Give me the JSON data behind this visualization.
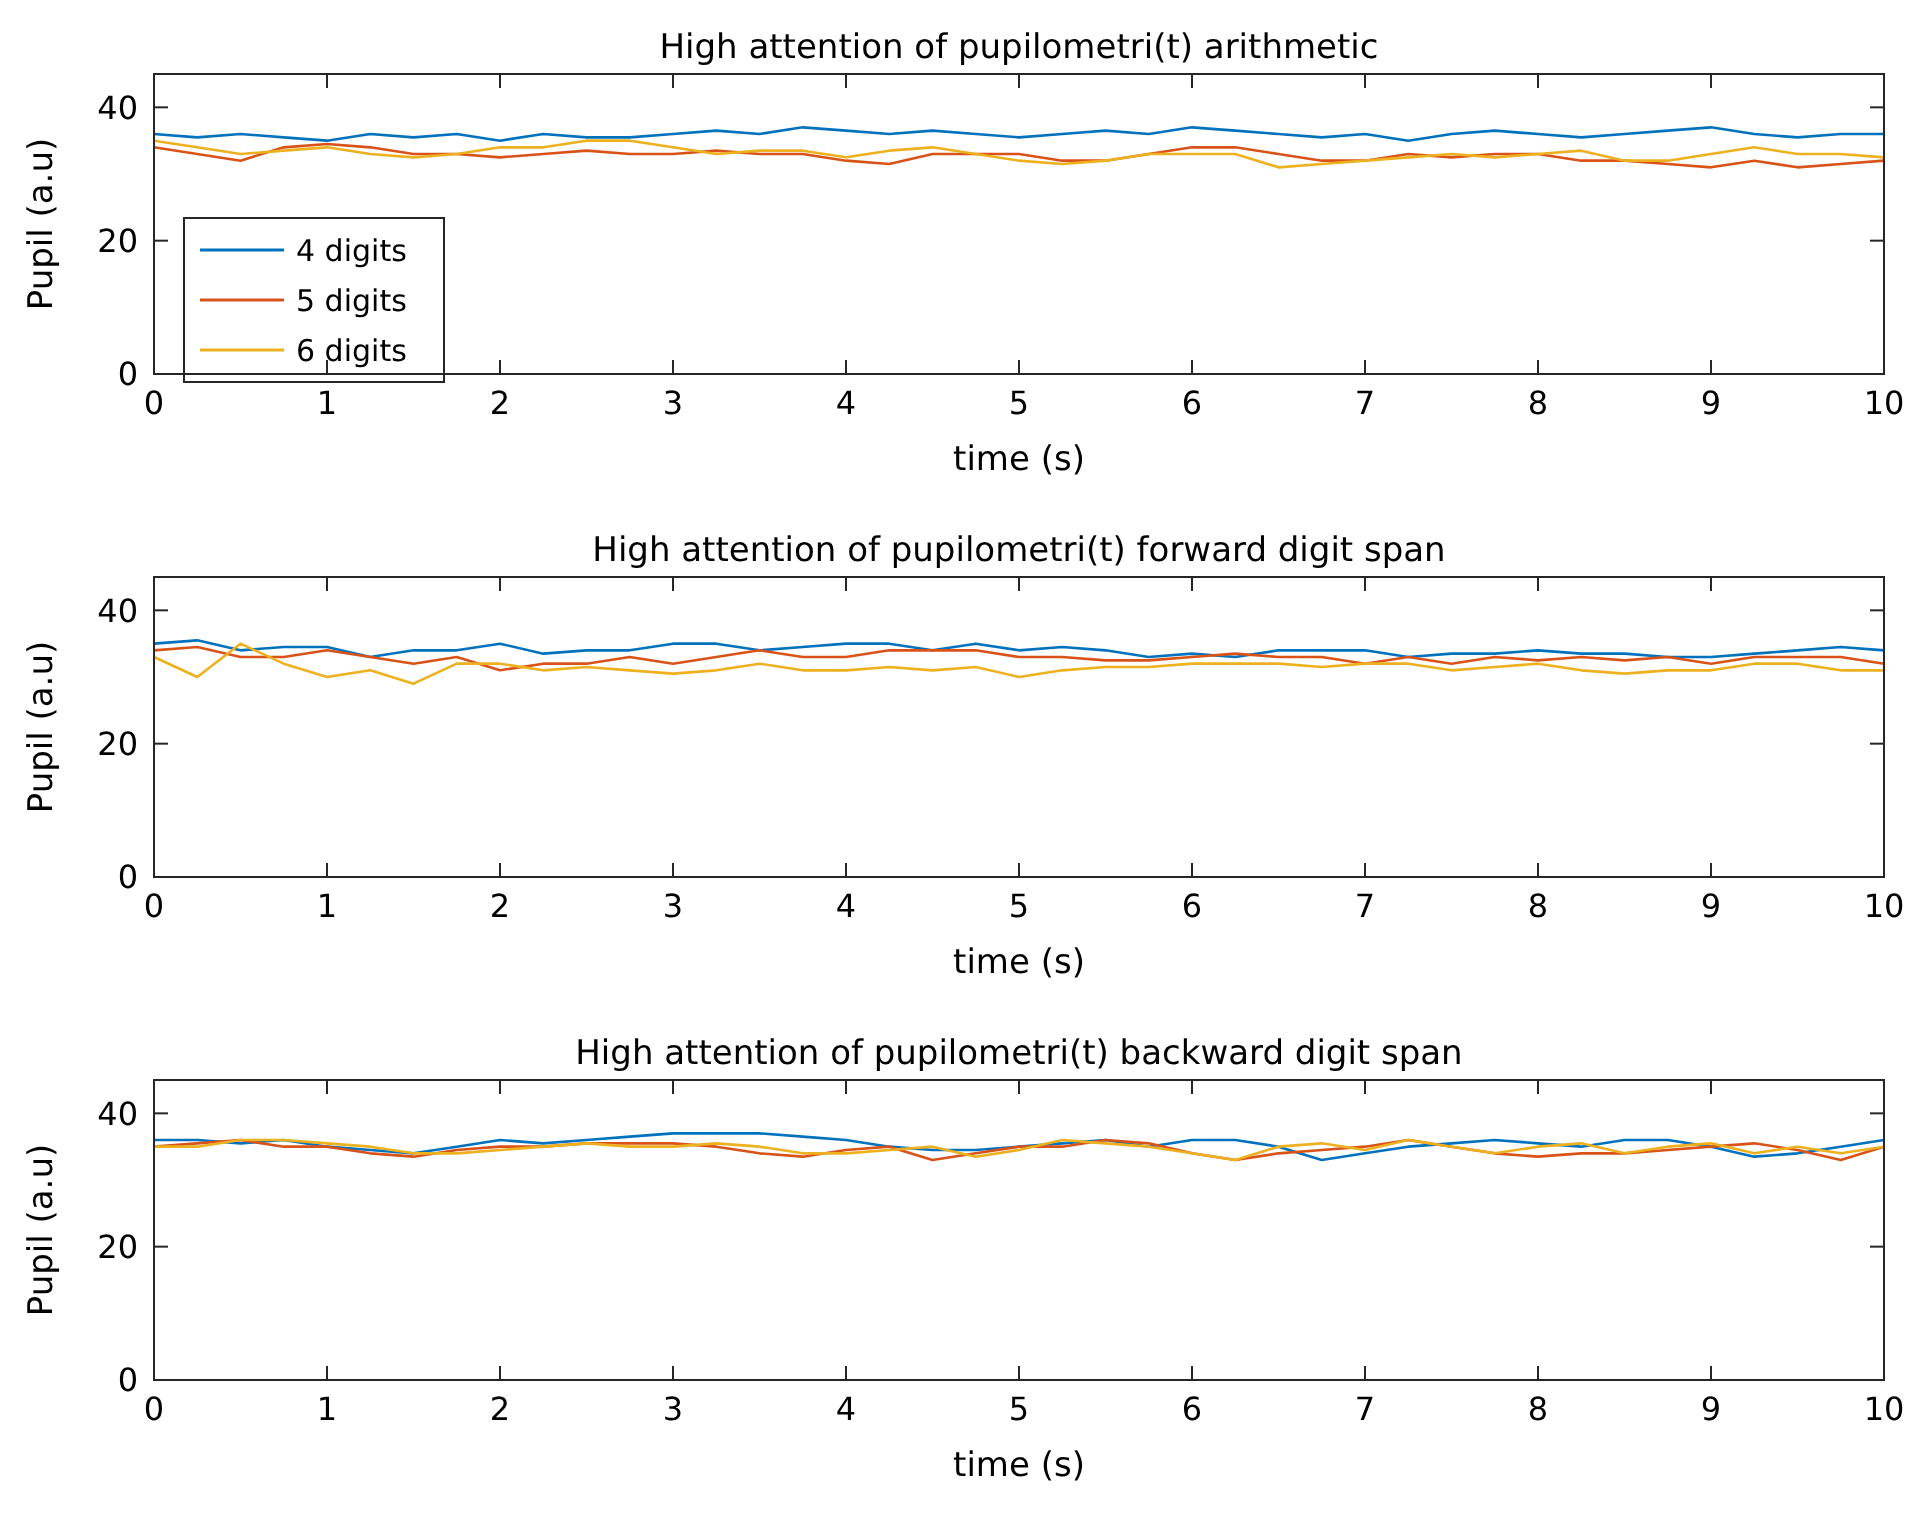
{
  "chart_data": [
    {
      "type": "line",
      "title": "High attention of pupilometri(t) arithmetic",
      "xlabel": "time (s)",
      "ylabel": "Pupil (a.u)",
      "xlim": [
        0,
        10
      ],
      "xticks": [
        0,
        1,
        2,
        3,
        4,
        5,
        6,
        7,
        8,
        9,
        10
      ],
      "ylim": [
        0,
        45
      ],
      "yticks": [
        0,
        20,
        40
      ],
      "legend": "bottom left",
      "x": [
        0,
        0.25,
        0.5,
        0.75,
        1,
        1.25,
        1.5,
        1.75,
        2,
        2.25,
        2.5,
        2.75,
        3,
        3.25,
        3.5,
        3.75,
        4,
        4.25,
        4.5,
        4.75,
        5,
        5.25,
        5.5,
        5.75,
        6,
        6.25,
        6.5,
        6.75,
        7,
        7.25,
        7.5,
        7.75,
        8,
        8.25,
        8.5,
        8.75,
        9,
        9.25,
        9.5,
        9.75,
        10
      ],
      "series": [
        {
          "name": "4 digits",
          "color": "#0072bd",
          "values": [
            36,
            35.5,
            36,
            35.5,
            35,
            36,
            35.5,
            36,
            35,
            36,
            35.5,
            35.5,
            36,
            36.5,
            36,
            37,
            36.5,
            36,
            36.5,
            36,
            35.5,
            36,
            36.5,
            36,
            37,
            36.5,
            36,
            35.5,
            36,
            35,
            36,
            36.5,
            36,
            35.5,
            36,
            36.5,
            37,
            36,
            35.5,
            36,
            36
          ]
        },
        {
          "name": "5 digits",
          "color": "#d95319",
          "values": [
            34,
            33,
            32,
            34,
            34.5,
            34,
            33,
            33,
            32.5,
            33,
            33.5,
            33,
            33,
            33.5,
            33,
            33,
            32,
            31.5,
            33,
            33,
            33,
            32,
            32,
            33,
            34,
            34,
            33,
            32,
            32,
            33,
            32.5,
            33,
            33,
            32,
            32,
            31.5,
            31,
            32,
            31,
            31.5,
            32
          ]
        },
        {
          "name": "6 digits",
          "color": "#edb120",
          "values": [
            35,
            34,
            33,
            33.5,
            34,
            33,
            32.5,
            33,
            34,
            34,
            35,
            35,
            34,
            33,
            33.5,
            33.5,
            32.5,
            33.5,
            34,
            33,
            32,
            31.5,
            32,
            33,
            33,
            33,
            31,
            31.5,
            32,
            32.5,
            33,
            32.5,
            33,
            33.5,
            32,
            32,
            33,
            34,
            33,
            33,
            32.5
          ]
        }
      ]
    },
    {
      "type": "line",
      "title": "High attention of pupilometri(t) forward digit span",
      "xlabel": "time (s)",
      "ylabel": "Pupil (a.u)",
      "xlim": [
        0,
        10
      ],
      "xticks": [
        0,
        1,
        2,
        3,
        4,
        5,
        6,
        7,
        8,
        9,
        10
      ],
      "ylim": [
        0,
        45
      ],
      "yticks": [
        0,
        20,
        40
      ],
      "x": [
        0,
        0.25,
        0.5,
        0.75,
        1,
        1.25,
        1.5,
        1.75,
        2,
        2.25,
        2.5,
        2.75,
        3,
        3.25,
        3.5,
        3.75,
        4,
        4.25,
        4.5,
        4.75,
        5,
        5.25,
        5.5,
        5.75,
        6,
        6.25,
        6.5,
        6.75,
        7,
        7.25,
        7.5,
        7.75,
        8,
        8.25,
        8.5,
        8.75,
        9,
        9.25,
        9.5,
        9.75,
        10
      ],
      "series": [
        {
          "color": "#0072bd",
          "values": [
            35,
            35.5,
            34,
            34.5,
            34.5,
            33,
            34,
            34,
            35,
            33.5,
            34,
            34,
            35,
            35,
            34,
            34.5,
            35,
            35,
            34,
            35,
            34,
            34.5,
            34,
            33,
            33.5,
            33,
            34,
            34,
            34,
            33,
            33.5,
            33.5,
            34,
            33.5,
            33.5,
            33,
            33,
            33.5,
            34,
            34.5,
            34
          ]
        },
        {
          "color": "#d95319",
          "values": [
            34,
            34.5,
            33,
            33,
            34,
            33,
            32,
            33,
            31,
            32,
            32,
            33,
            32,
            33,
            34,
            33,
            33,
            34,
            34,
            34,
            33,
            33,
            32.5,
            32.5,
            33,
            33.5,
            33,
            33,
            32,
            33,
            32,
            33,
            32.5,
            33,
            32.5,
            33,
            32,
            33,
            33,
            33,
            32
          ]
        },
        {
          "color": "#edb120",
          "values": [
            33,
            30,
            35,
            32,
            30,
            31,
            29,
            32,
            32,
            31,
            31.5,
            31,
            30.5,
            31,
            32,
            31,
            31,
            31.5,
            31,
            31.5,
            30,
            31,
            31.5,
            31.5,
            32,
            32,
            32,
            31.5,
            32,
            32,
            31,
            31.5,
            32,
            31,
            30.5,
            31,
            31,
            32,
            32,
            31,
            31
          ]
        }
      ]
    },
    {
      "type": "line",
      "title": "High attention of pupilometri(t) backward digit span",
      "xlabel": "time (s)",
      "ylabel": "Pupil (a.u)",
      "xlim": [
        0,
        10
      ],
      "xticks": [
        0,
        1,
        2,
        3,
        4,
        5,
        6,
        7,
        8,
        9,
        10
      ],
      "ylim": [
        0,
        45
      ],
      "yticks": [
        0,
        20,
        40
      ],
      "x": [
        0,
        0.25,
        0.5,
        0.75,
        1,
        1.25,
        1.5,
        1.75,
        2,
        2.25,
        2.5,
        2.75,
        3,
        3.25,
        3.5,
        3.75,
        4,
        4.25,
        4.5,
        4.75,
        5,
        5.25,
        5.5,
        5.75,
        6,
        6.25,
        6.5,
        6.75,
        7,
        7.25,
        7.5,
        7.75,
        8,
        8.25,
        8.5,
        8.75,
        9,
        9.25,
        9.5,
        9.75,
        10
      ],
      "series": [
        {
          "color": "#0072bd",
          "values": [
            36,
            36,
            35.5,
            36,
            35,
            34.5,
            34,
            35,
            36,
            35.5,
            36,
            36.5,
            37,
            37,
            37,
            36.5,
            36,
            35,
            34.5,
            34.5,
            35,
            35.5,
            36,
            35,
            36,
            36,
            35,
            33,
            34,
            35,
            35.5,
            36,
            35.5,
            35,
            36,
            36,
            35,
            33.5,
            34,
            35,
            36
          ]
        },
        {
          "color": "#d95319",
          "values": [
            35,
            35.5,
            36,
            35,
            35,
            34,
            33.5,
            34.5,
            35,
            35,
            35.5,
            35.5,
            35.5,
            35,
            34,
            33.5,
            34.5,
            35,
            33,
            34,
            35,
            35,
            36,
            35.5,
            34,
            33,
            34,
            34.5,
            35,
            36,
            35,
            34,
            33.5,
            34,
            34,
            34.5,
            35,
            35.5,
            34.5,
            33,
            35
          ]
        },
        {
          "color": "#edb120",
          "values": [
            35,
            35,
            36,
            36,
            35.5,
            35,
            34,
            34,
            34.5,
            35,
            35.5,
            35,
            35,
            35.5,
            35,
            34,
            34,
            34.5,
            35,
            33.5,
            34.5,
            36,
            35.5,
            35,
            34,
            33,
            35,
            35.5,
            34.5,
            36,
            35,
            34,
            35,
            35.5,
            34,
            35,
            35.5,
            34,
            35,
            34,
            35
          ]
        }
      ]
    }
  ]
}
